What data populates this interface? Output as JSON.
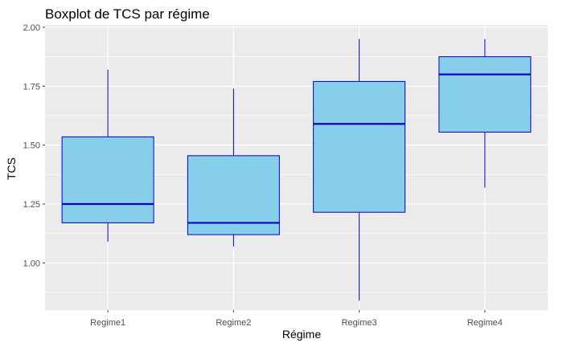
{
  "chart_data": {
    "type": "boxplot",
    "title": "Boxplot de TCS par régime",
    "xlabel": "Régime",
    "ylabel": "TCS",
    "categories": [
      "Regime1",
      "Regime2",
      "Regime3",
      "Regime4"
    ],
    "boxes": [
      {
        "category": "Regime1",
        "min": 1.09,
        "q1": 1.17,
        "median": 1.25,
        "q3": 1.535,
        "max": 1.82
      },
      {
        "category": "Regime2",
        "min": 1.07,
        "q1": 1.12,
        "median": 1.17,
        "q3": 1.455,
        "max": 1.74
      },
      {
        "category": "Regime3",
        "min": 0.84,
        "q1": 1.215,
        "median": 1.59,
        "q3": 1.77,
        "max": 1.95
      },
      {
        "category": "Regime4",
        "min": 1.32,
        "q1": 1.555,
        "median": 1.8,
        "q3": 1.875,
        "max": 1.95
      }
    ],
    "yticks": [
      "1.00",
      "1.25",
      "1.50",
      "1.75",
      "2.00"
    ],
    "ylim": [
      0.8,
      2.01
    ],
    "grid": true,
    "colors": {
      "panel": "#ebebeb",
      "grid": "#ffffff",
      "box_fill": "#87ceeb",
      "box_line": "#0000cd"
    }
  }
}
